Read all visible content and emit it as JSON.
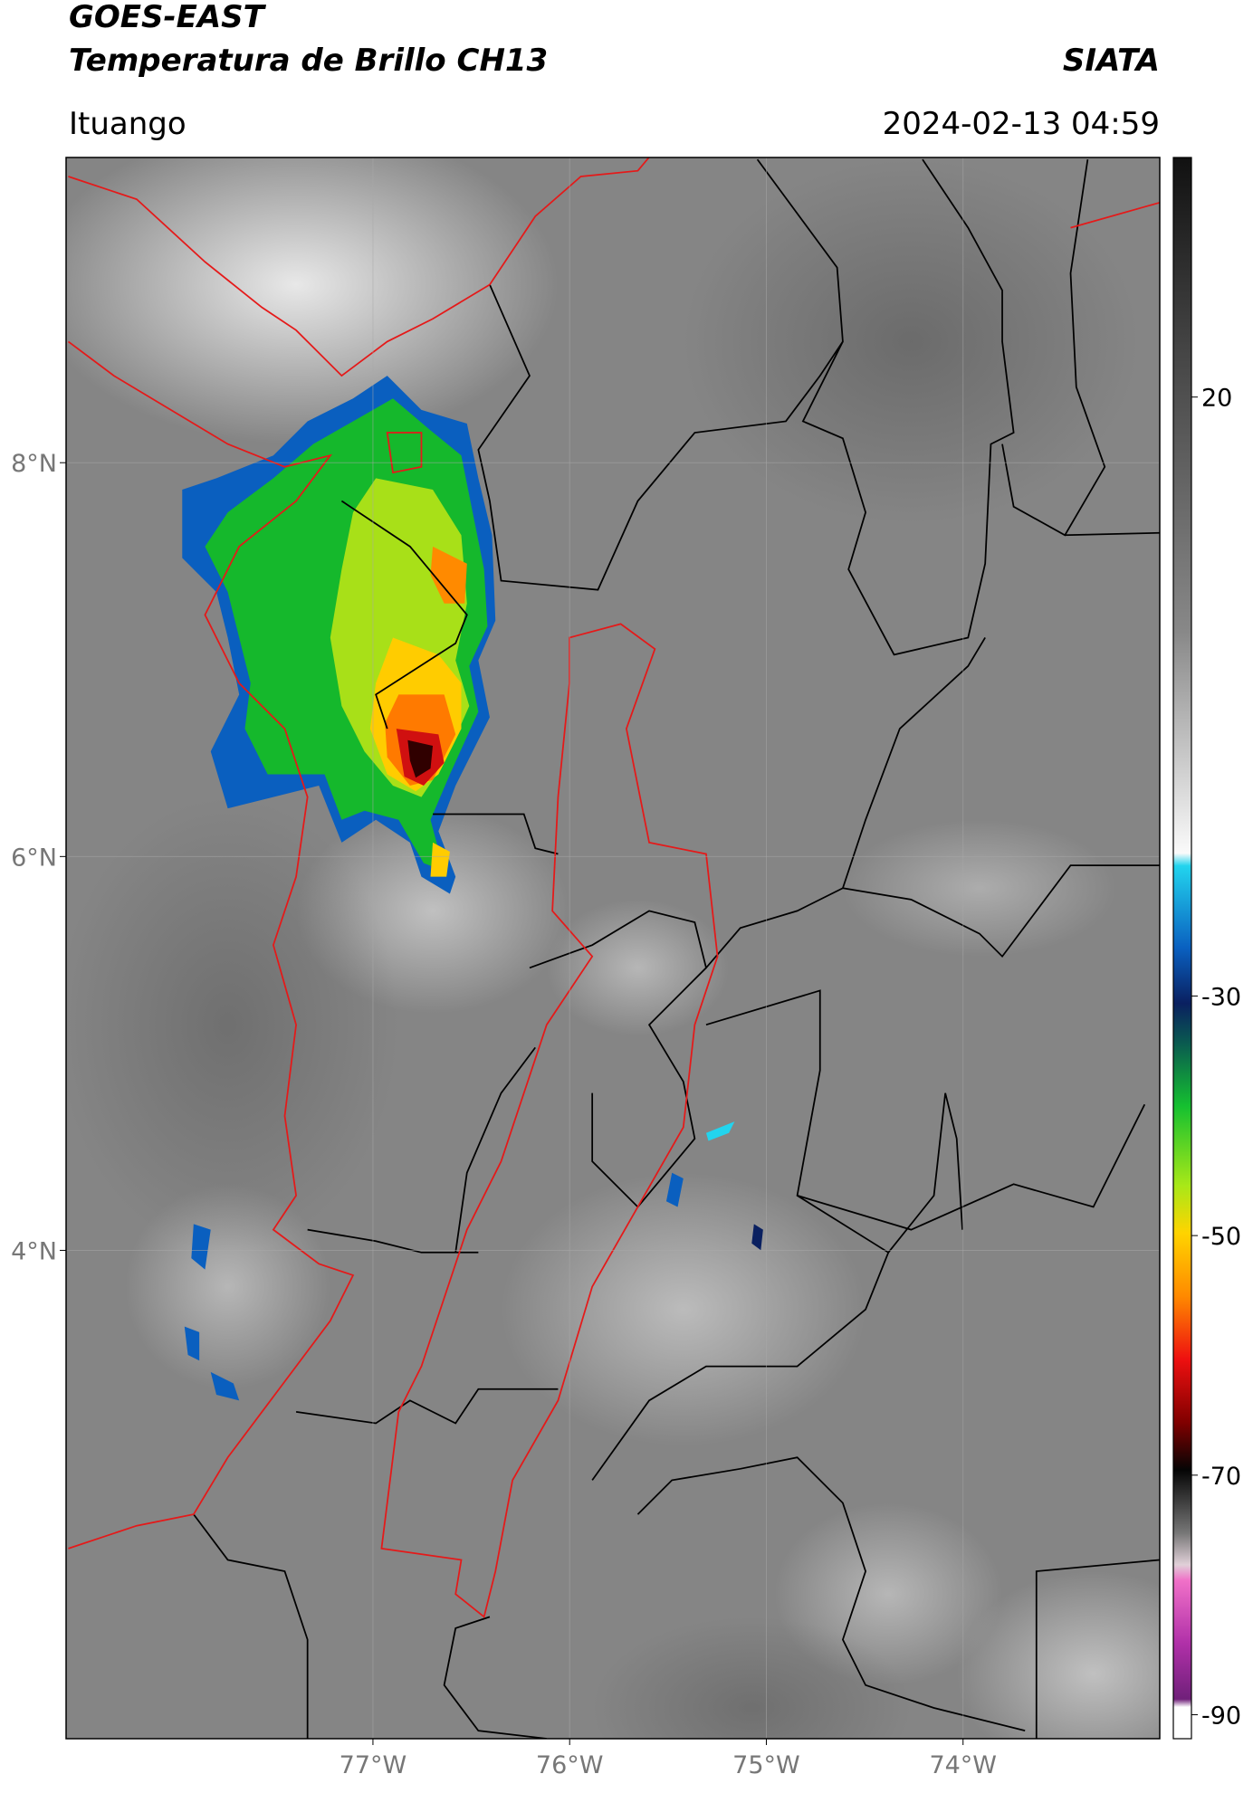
{
  "chart_data": {
    "type": "map",
    "title": [
      "GOES-EAST",
      "Temperatura de Brillo CH13"
    ],
    "source": "SIATA",
    "location": "Ituango",
    "datetime": "2024-02-13 04:59",
    "xlim": [
      -78.56,
      -73.0
    ],
    "ylim": [
      1.52,
      9.55
    ],
    "xticks": [
      {
        "value": -77,
        "label": "77°W"
      },
      {
        "value": -76,
        "label": "76°W"
      },
      {
        "value": -75,
        "label": "75°W"
      },
      {
        "value": -74,
        "label": "74°W"
      }
    ],
    "yticks": [
      {
        "value": 8,
        "label": "8°N"
      },
      {
        "value": 6,
        "label": "6°N"
      },
      {
        "value": 4,
        "label": "4°N"
      }
    ],
    "grid": true,
    "colorbar": {
      "lim": [
        -92,
        40
      ],
      "ticks": [
        20,
        -30,
        -50,
        -70,
        -90
      ]
    }
  }
}
